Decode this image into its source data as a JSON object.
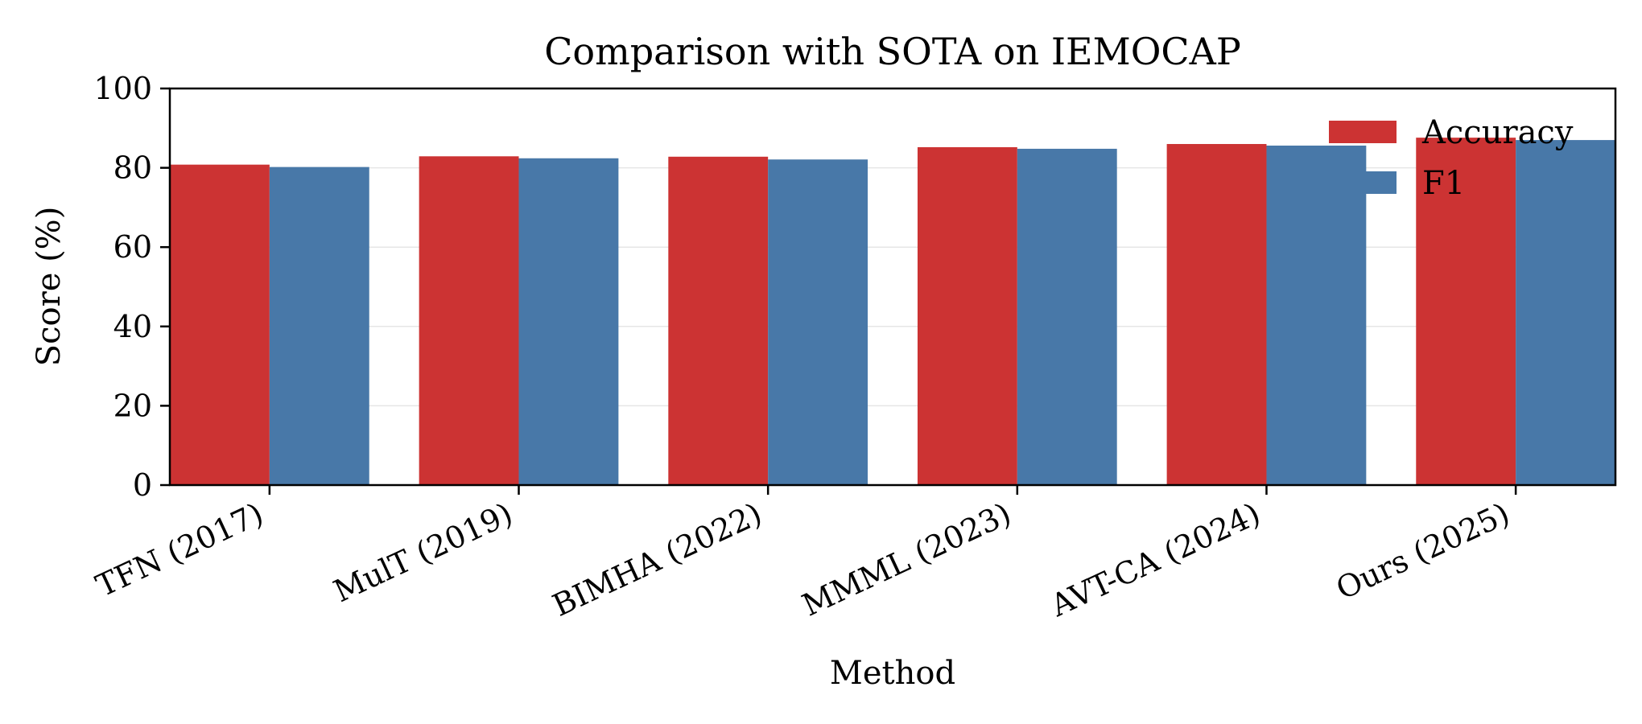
{
  "chart_data": {
    "type": "bar",
    "title": "Comparison with SOTA on IEMOCAP",
    "xlabel": "Method",
    "ylabel": "Score (%)",
    "categories": [
      "TFN (2017)",
      "MulT (2019)",
      "BIMHA (2022)",
      "MMML (2023)",
      "AVT-CA (2024)",
      "Ours (2025)"
    ],
    "series": [
      {
        "name": "Accuracy",
        "color": "#cc3333",
        "values": [
          80.8,
          82.9,
          82.8,
          85.2,
          86.0,
          87.6
        ]
      },
      {
        "name": "F1",
        "color": "#4878a8",
        "values": [
          80.2,
          82.4,
          82.1,
          84.8,
          85.6,
          87.0
        ]
      }
    ],
    "ylim": [
      0,
      100
    ],
    "yticks": [
      "0",
      "20",
      "40",
      "60",
      "80",
      "100"
    ],
    "grid": "y",
    "legend": "upper-right"
  }
}
